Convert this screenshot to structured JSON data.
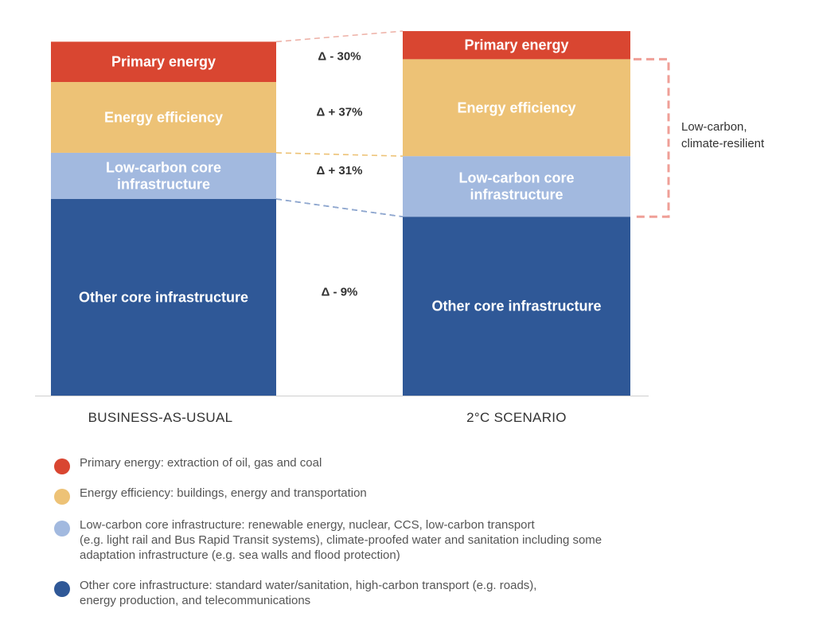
{
  "chart_data": {
    "type": "bar",
    "stacked": true,
    "categories": [
      "BUSINESS-AS-USUAL",
      "2°C SCENARIO"
    ],
    "series": [
      {
        "name": "Other core infrastructure",
        "values": [
          100,
          91
        ],
        "color": "#2f5897"
      },
      {
        "name": "Low-carbon core\ninfrastructure",
        "values": [
          23.5,
          30.8
        ],
        "color": "#a2b9df"
      },
      {
        "name": "Energy efficiency",
        "values": [
          36.0,
          49.3
        ],
        "color": "#edc276"
      },
      {
        "name": "Primary energy",
        "values": [
          20.5,
          14.3
        ],
        "color": "#d94631"
      }
    ],
    "deltas": [
      {
        "series": "Primary energy",
        "label": "Δ - 30%"
      },
      {
        "series": "Energy efficiency",
        "label": "Δ + 37%"
      },
      {
        "series": "Low-carbon core\ninfrastructure",
        "label": "Δ + 31%"
      },
      {
        "series": "Other core infrastructure",
        "label": "Δ - 9%"
      }
    ],
    "bracket_label": [
      "Low-carbon,",
      "climate-resilient"
    ],
    "grid": false,
    "legend_position": "bottom"
  },
  "legend": [
    {
      "color": "#d94631",
      "text": "Primary energy: extraction of oil, gas and coal"
    },
    {
      "color": "#edc276",
      "text": "Energy efficiency: buildings, energy and transportation"
    },
    {
      "color": "#a2b9df",
      "text": "Low-carbon core infrastructure: renewable energy, nuclear, CCS, low-carbon transport\n(e.g. light rail and Bus Rapid Transit systems), climate-proofed water and sanitation including some\nadaptation infrastructure (e.g. sea walls and flood protection)"
    },
    {
      "color": "#2f5897",
      "text": "Other core infrastructure: standard water/sanitation, high-carbon transport (e.g. roads),\nenergy production, and telecommunications"
    }
  ]
}
